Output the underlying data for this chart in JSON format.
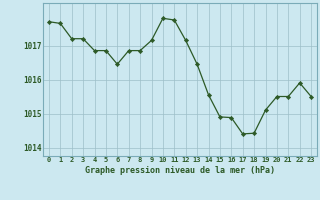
{
  "x": [
    0,
    1,
    2,
    3,
    4,
    5,
    6,
    7,
    8,
    9,
    10,
    11,
    12,
    13,
    14,
    15,
    16,
    17,
    18,
    19,
    20,
    21,
    22,
    23
  ],
  "y": [
    1017.7,
    1017.65,
    1017.2,
    1017.2,
    1016.85,
    1016.85,
    1016.45,
    1016.85,
    1016.85,
    1017.15,
    1017.8,
    1017.75,
    1017.15,
    1016.45,
    1015.55,
    1014.9,
    1014.88,
    1014.4,
    1014.42,
    1015.1,
    1015.5,
    1015.5,
    1015.9,
    1015.5
  ],
  "line_color": "#2d5a27",
  "marker_color": "#2d5a27",
  "bg_color": "#cce8f0",
  "grid_color": "#9dbfc8",
  "axis_label_color": "#2d5a27",
  "title": "Graphe pression niveau de la mer (hPa)",
  "ylim": [
    1013.75,
    1018.25
  ],
  "yticks": [
    1014,
    1015,
    1016,
    1017
  ],
  "xlim": [
    -0.5,
    23.5
  ],
  "xticks": [
    0,
    1,
    2,
    3,
    4,
    5,
    6,
    7,
    8,
    9,
    10,
    11,
    12,
    13,
    14,
    15,
    16,
    17,
    18,
    19,
    20,
    21,
    22,
    23
  ],
  "border_color": "#7aabb8"
}
